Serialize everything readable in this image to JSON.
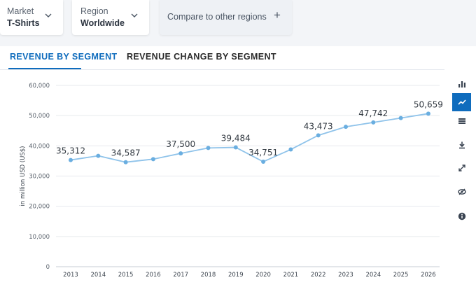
{
  "filters": {
    "market": {
      "label": "Market",
      "value": "T-Shirts"
    },
    "region": {
      "label": "Region",
      "value": "Worldwide"
    },
    "compare": {
      "label": "Compare to other regions",
      "icon": "plus-icon"
    }
  },
  "tabs": [
    {
      "label": "REVENUE BY SEGMENT",
      "active": true
    },
    {
      "label": "REVENUE CHANGE BY SEGMENT",
      "active": false
    }
  ],
  "colors": {
    "accent": "#0f6cbd",
    "line": "#8fc3ea",
    "point": "#6aaee0"
  },
  "side_toolbar": [
    {
      "icon": "bar-chart-icon",
      "active": false
    },
    {
      "icon": "line-chart-icon",
      "active": true
    },
    {
      "icon": "table-icon",
      "active": false
    },
    {
      "icon": "download-icon",
      "active": false
    },
    {
      "icon": "fullscreen-icon",
      "active": false
    },
    {
      "icon": "hide-icon",
      "active": false
    },
    {
      "icon": "info-icon",
      "active": false
    }
  ],
  "chart_data": {
    "type": "line",
    "title": "",
    "xlabel": "",
    "ylabel": "in million USD (US$)",
    "ylim": [
      0,
      60000
    ],
    "yticks": [
      0,
      10000,
      20000,
      30000,
      40000,
      50000,
      60000
    ],
    "ytick_labels": [
      "0",
      "10,000",
      "20,000",
      "30,000",
      "40,000",
      "50,000",
      "60,000"
    ],
    "grid": true,
    "legend": "none",
    "categories": [
      "2013",
      "2014",
      "2015",
      "2016",
      "2017",
      "2018",
      "2019",
      "2020",
      "2021",
      "2022",
      "2023",
      "2024",
      "2025",
      "2026"
    ],
    "series": [
      {
        "values": [
          35312,
          36700,
          34587,
          35600,
          37500,
          39300,
          39484,
          34751,
          38800,
          43473,
          46300,
          47742,
          49200,
          50659
        ],
        "labels": [
          "35,312",
          "",
          "34,587",
          "",
          "37,500",
          "",
          "39,484",
          "34,751",
          "",
          "43,473",
          "",
          "47,742",
          "",
          "50,659"
        ]
      }
    ]
  }
}
